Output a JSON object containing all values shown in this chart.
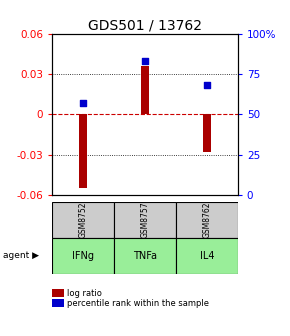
{
  "title": "GDS501 / 13762",
  "samples": [
    "GSM8752",
    "GSM8757",
    "GSM8762"
  ],
  "agents": [
    "IFNg",
    "TNFa",
    "IL4"
  ],
  "log_ratios": [
    -0.055,
    0.036,
    -0.028
  ],
  "percentile_ranks": [
    57,
    83,
    68
  ],
  "ylim_left": [
    -0.06,
    0.06
  ],
  "ylim_right": [
    0,
    100
  ],
  "yticks_left": [
    -0.06,
    -0.03,
    0,
    0.03,
    0.06
  ],
  "yticks_right": [
    0,
    25,
    50,
    75,
    100
  ],
  "ytick_labels_left": [
    "-0.06",
    "-0.03",
    "0",
    "0.03",
    "0.06"
  ],
  "ytick_labels_right": [
    "0",
    "25",
    "50",
    "75",
    "100%"
  ],
  "bar_color": "#aa0000",
  "dot_color": "#0000cc",
  "zero_line_color": "#cc0000",
  "grid_color": "#000000",
  "title_fontsize": 10,
  "tick_fontsize": 7.5,
  "gray_bg": "#cccccc",
  "green_bg": "#99ee99",
  "bar_width": 0.12,
  "agent_label": "agent"
}
